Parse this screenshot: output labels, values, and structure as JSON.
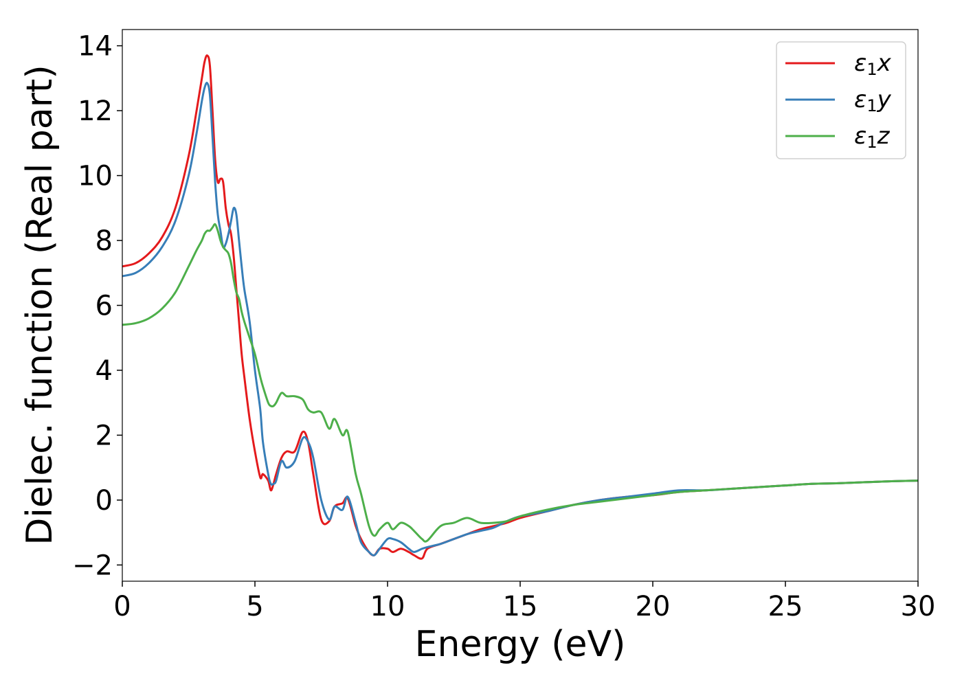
{
  "chart_data": {
    "type": "line",
    "title": "",
    "xlabel": "Energy (eV)",
    "ylabel": "Dielec. function (Real part)",
    "xlim": [
      0,
      30
    ],
    "ylim": [
      -2.5,
      14.5
    ],
    "xticks": [
      0,
      5,
      10,
      15,
      20,
      25,
      30
    ],
    "yticks": [
      -2,
      0,
      2,
      4,
      6,
      8,
      10,
      12,
      14
    ],
    "xtick_labels": [
      "0",
      "5",
      "10",
      "15",
      "20",
      "25",
      "30"
    ],
    "ytick_labels": [
      "−2",
      "0",
      "2",
      "4",
      "6",
      "8",
      "10",
      "12",
      "14"
    ],
    "grid": false,
    "legend": "top-right",
    "series": [
      {
        "name": "ε₁x",
        "name_base": "ε",
        "name_sub": "1",
        "name_suffix": "x",
        "color": "#e41a1c",
        "x": [
          0,
          0.5,
          1.0,
          1.5,
          2.0,
          2.5,
          2.8,
          3.0,
          3.1,
          3.2,
          3.3,
          3.4,
          3.5,
          3.6,
          3.7,
          3.8,
          3.9,
          4.0,
          4.1,
          4.2,
          4.3,
          4.4,
          4.5,
          4.6,
          4.8,
          5.0,
          5.2,
          5.3,
          5.5,
          5.6,
          5.7,
          5.8,
          6.0,
          6.2,
          6.5,
          6.8,
          7.0,
          7.2,
          7.5,
          7.8,
          8.0,
          8.3,
          8.5,
          8.8,
          9.0,
          9.3,
          9.5,
          9.7,
          10.0,
          10.2,
          10.5,
          10.8,
          11.0,
          11.3,
          11.5,
          12.0,
          12.5,
          13.0,
          13.5,
          14.0,
          14.5,
          15.0,
          16.0,
          17.0,
          18.0,
          19.0,
          20.0,
          21.0,
          22.0,
          23.0,
          24.0,
          25.0,
          26.0,
          27.0,
          28.0,
          29.0,
          30.0
        ],
        "y": [
          7.2,
          7.3,
          7.6,
          8.1,
          9.0,
          10.6,
          12.0,
          13.0,
          13.5,
          13.7,
          13.4,
          12.0,
          10.5,
          9.8,
          9.9,
          9.8,
          9.0,
          8.5,
          8.2,
          7.5,
          6.5,
          5.5,
          4.5,
          3.8,
          2.5,
          1.5,
          0.7,
          0.8,
          0.6,
          0.3,
          0.5,
          0.8,
          1.3,
          1.5,
          1.5,
          2.1,
          1.8,
          0.8,
          -0.6,
          -0.65,
          -0.2,
          -0.1,
          0.05,
          -0.8,
          -1.2,
          -1.6,
          -1.7,
          -1.5,
          -1.5,
          -1.6,
          -1.5,
          -1.6,
          -1.7,
          -1.8,
          -1.5,
          -1.35,
          -1.2,
          -1.05,
          -0.9,
          -0.8,
          -0.7,
          -0.55,
          -0.35,
          -0.15,
          0.0,
          0.1,
          0.15,
          0.25,
          0.3,
          0.35,
          0.4,
          0.45,
          0.5,
          0.52,
          0.55,
          0.58,
          0.6
        ]
      },
      {
        "name": "ε₁y",
        "name_base": "ε",
        "name_sub": "1",
        "name_suffix": "y",
        "color": "#377eb8",
        "x": [
          0,
          0.5,
          1.0,
          1.5,
          2.0,
          2.5,
          2.8,
          3.0,
          3.1,
          3.2,
          3.3,
          3.4,
          3.5,
          3.6,
          3.7,
          3.8,
          3.9,
          4.0,
          4.1,
          4.2,
          4.3,
          4.4,
          4.5,
          4.6,
          4.8,
          5.0,
          5.2,
          5.3,
          5.5,
          5.6,
          5.7,
          5.8,
          6.0,
          6.2,
          6.5,
          6.8,
          7.0,
          7.2,
          7.5,
          7.8,
          8.0,
          8.3,
          8.5,
          8.8,
          9.0,
          9.3,
          9.5,
          9.7,
          10.0,
          10.2,
          10.5,
          10.8,
          11.0,
          11.3,
          11.5,
          12.0,
          12.5,
          13.0,
          13.5,
          14.0,
          14.5,
          15.0,
          16.0,
          17.0,
          18.0,
          19.0,
          20.0,
          21.0,
          22.0,
          23.0,
          24.0,
          25.0,
          26.0,
          27.0,
          28.0,
          29.0,
          30.0
        ],
        "y": [
          6.9,
          7.0,
          7.3,
          7.8,
          8.6,
          10.0,
          11.3,
          12.3,
          12.7,
          12.85,
          12.5,
          11.2,
          9.8,
          8.8,
          8.3,
          7.8,
          7.9,
          8.2,
          8.6,
          9.0,
          8.8,
          8.0,
          7.2,
          6.5,
          5.5,
          4.0,
          2.8,
          1.8,
          0.8,
          0.5,
          0.5,
          0.6,
          1.2,
          1.0,
          1.2,
          1.9,
          1.8,
          1.3,
          0.0,
          -0.6,
          -0.2,
          -0.3,
          0.1,
          -0.7,
          -1.3,
          -1.6,
          -1.7,
          -1.5,
          -1.2,
          -1.2,
          -1.3,
          -1.5,
          -1.6,
          -1.5,
          -1.45,
          -1.35,
          -1.2,
          -1.05,
          -0.95,
          -0.85,
          -0.65,
          -0.5,
          -0.35,
          -0.15,
          0.0,
          0.1,
          0.2,
          0.3,
          0.3,
          0.35,
          0.4,
          0.45,
          0.5,
          0.52,
          0.55,
          0.58,
          0.6
        ]
      },
      {
        "name": "ε₁z",
        "name_base": "ε",
        "name_sub": "1",
        "name_suffix": "z",
        "color": "#4daf4a",
        "x": [
          0,
          0.5,
          1.0,
          1.5,
          2.0,
          2.5,
          2.8,
          3.0,
          3.1,
          3.2,
          3.3,
          3.4,
          3.5,
          3.6,
          3.7,
          3.8,
          3.9,
          4.0,
          4.1,
          4.2,
          4.3,
          4.4,
          4.5,
          4.6,
          4.8,
          5.0,
          5.2,
          5.3,
          5.5,
          5.6,
          5.7,
          5.8,
          6.0,
          6.2,
          6.5,
          6.8,
          7.0,
          7.2,
          7.5,
          7.8,
          8.0,
          8.3,
          8.5,
          8.8,
          9.0,
          9.3,
          9.5,
          9.7,
          10.0,
          10.2,
          10.5,
          10.8,
          11.0,
          11.3,
          11.5,
          12.0,
          12.5,
          13.0,
          13.5,
          14.0,
          14.5,
          15.0,
          16.0,
          17.0,
          18.0,
          19.0,
          20.0,
          21.0,
          22.0,
          23.0,
          24.0,
          25.0,
          26.0,
          27.0,
          28.0,
          29.0,
          30.0
        ],
        "y": [
          5.4,
          5.45,
          5.6,
          5.9,
          6.4,
          7.2,
          7.7,
          8.0,
          8.2,
          8.3,
          8.3,
          8.4,
          8.5,
          8.3,
          8.0,
          7.8,
          7.7,
          7.6,
          7.3,
          6.8,
          6.4,
          6.2,
          5.8,
          5.5,
          5.0,
          4.5,
          3.8,
          3.5,
          3.0,
          2.9,
          2.9,
          3.0,
          3.3,
          3.2,
          3.2,
          3.1,
          2.8,
          2.7,
          2.7,
          2.2,
          2.5,
          2.0,
          2.1,
          0.8,
          0.2,
          -0.8,
          -1.1,
          -0.9,
          -0.7,
          -0.9,
          -0.7,
          -0.8,
          -0.95,
          -1.2,
          -1.25,
          -0.8,
          -0.7,
          -0.55,
          -0.7,
          -0.7,
          -0.65,
          -0.5,
          -0.3,
          -0.15,
          -0.05,
          0.05,
          0.15,
          0.25,
          0.3,
          0.35,
          0.4,
          0.45,
          0.5,
          0.52,
          0.55,
          0.58,
          0.6
        ]
      }
    ]
  }
}
